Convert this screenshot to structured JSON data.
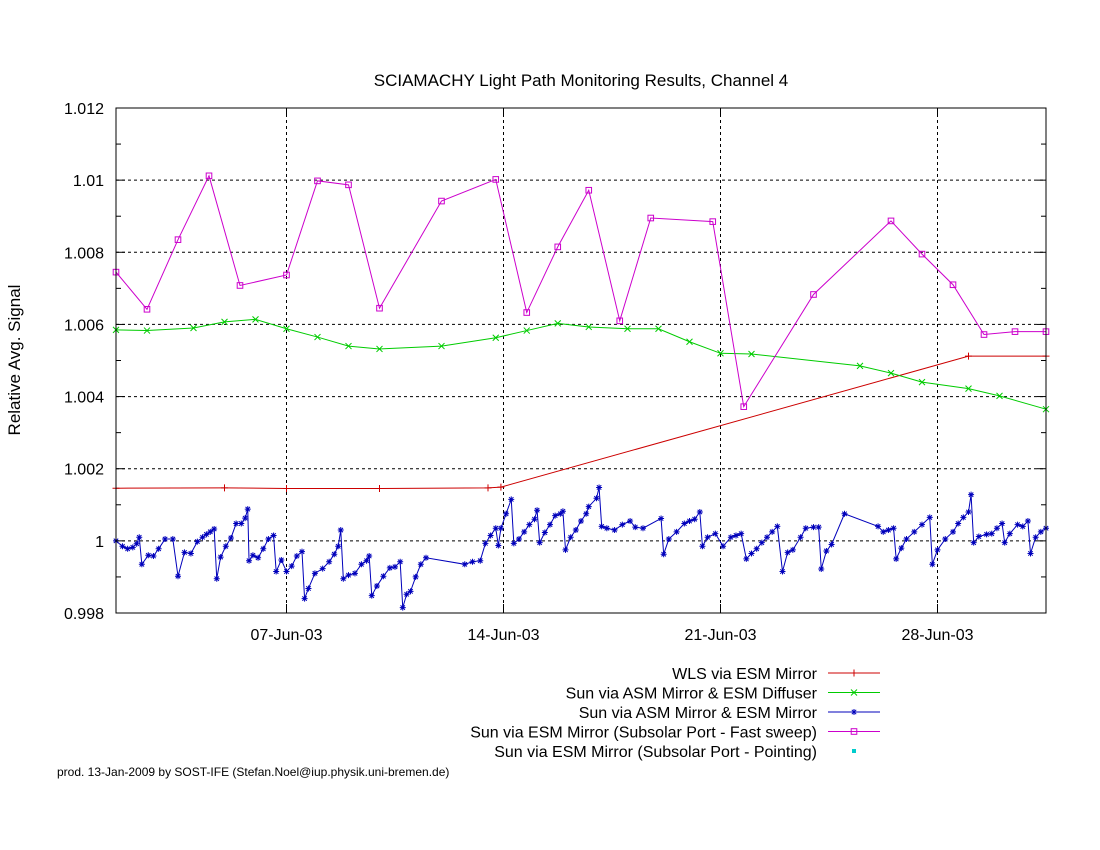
{
  "chart_data": {
    "type": "line",
    "title": "SCIAMACHY Light Path Monitoring Results, Channel 4",
    "xlabel": "",
    "ylabel": "Relative Avg. Signal",
    "x_unit": "date (2003, month-day)",
    "xlim": [
      "2003-06-01T12:00",
      "2003-07-01T12:00"
    ],
    "ylim": [
      0.998,
      1.012
    ],
    "y_ticks": [
      "0.998",
      "1",
      "1.002",
      "1.004",
      "1.006",
      "1.008",
      "1.01",
      "1.012"
    ],
    "x_ticks": [
      {
        "date": "2003-06-07",
        "label": "07-Jun-03"
      },
      {
        "date": "2003-06-14",
        "label": "14-Jun-03"
      },
      {
        "date": "2003-06-21",
        "label": "21-Jun-03"
      },
      {
        "date": "2003-06-28",
        "label": "28-Jun-03"
      }
    ],
    "grid": true,
    "legend_position": "bottom-right",
    "series": [
      {
        "name": "WLS via ESM Mirror",
        "color": "#cc0000",
        "marker": "plus",
        "points": [
          [
            "2003-06-01T12:00",
            1.00146
          ],
          [
            "2003-06-05T00:00",
            1.00147
          ],
          [
            "2003-06-07T00:00",
            1.00145
          ],
          [
            "2003-06-10T00:00",
            1.00145
          ],
          [
            "2003-06-13T12:00",
            1.00147
          ],
          [
            "2003-06-13T22:00",
            1.00149
          ],
          [
            "2003-06-29T00:00",
            1.00512
          ],
          [
            "2003-07-01T12:00",
            1.00512
          ]
        ]
      },
      {
        "name": "Sun via ASM Mirror & ESM Diffuser",
        "color": "#00cc00",
        "marker": "cross",
        "points": [
          [
            "2003-06-01T12:00",
            1.00585
          ],
          [
            "2003-06-02T12:00",
            1.00583
          ],
          [
            "2003-06-04T00:00",
            1.0059
          ],
          [
            "2003-06-05T00:00",
            1.00607
          ],
          [
            "2003-06-06T00:00",
            1.00614
          ],
          [
            "2003-06-07T00:00",
            1.00588
          ],
          [
            "2003-06-08T00:00",
            1.00565
          ],
          [
            "2003-06-09T00:00",
            1.0054
          ],
          [
            "2003-06-10T00:00",
            1.00532
          ],
          [
            "2003-06-12T00:00",
            1.0054
          ],
          [
            "2003-06-13T18:00",
            1.00563
          ],
          [
            "2003-06-14T18:00",
            1.00583
          ],
          [
            "2003-06-15T18:00",
            1.00603
          ],
          [
            "2003-06-16T18:00",
            1.00593
          ],
          [
            "2003-06-18T00:00",
            1.00588
          ],
          [
            "2003-06-19T00:00",
            1.00588
          ],
          [
            "2003-06-20T00:00",
            1.00552
          ],
          [
            "2003-06-21T00:00",
            1.0052
          ],
          [
            "2003-06-22T00:00",
            1.00518
          ],
          [
            "2003-06-25T12:00",
            1.00485
          ],
          [
            "2003-06-26T12:00",
            1.00465
          ],
          [
            "2003-06-27T12:00",
            1.0044
          ],
          [
            "2003-06-29T00:00",
            1.00422
          ],
          [
            "2003-06-30T00:00",
            1.00402
          ],
          [
            "2003-07-01T12:00",
            1.00365
          ]
        ]
      },
      {
        "name": "Sun via ASM Mirror & ESM Mirror",
        "color": "#0000bb",
        "marker": "star",
        "points": [
          [
            "2003-06-01T12:00",
            1.0
          ],
          [
            "2003-06-01T17:00",
            0.99985
          ],
          [
            "2003-06-01T21:00",
            0.99978
          ],
          [
            "2003-06-02T01:00",
            0.99982
          ],
          [
            "2003-06-02T04:00",
            0.99992
          ],
          [
            "2003-06-02T06:00",
            1.0001
          ],
          [
            "2003-06-02T08:00",
            0.99935
          ],
          [
            "2003-06-02T13:00",
            0.9996
          ],
          [
            "2003-06-02T17:00",
            0.99958
          ],
          [
            "2003-06-02T21:00",
            0.99978
          ],
          [
            "2003-06-03T02:00",
            1.00005
          ],
          [
            "2003-06-03T08:00",
            1.00005
          ],
          [
            "2003-06-03T12:00",
            0.99902
          ],
          [
            "2003-06-03T17:00",
            0.99968
          ],
          [
            "2003-06-03T22:00",
            0.99965
          ],
          [
            "2003-06-04T03:00",
            0.99998
          ],
          [
            "2003-06-04T07:00",
            1.0001
          ],
          [
            "2003-06-04T10:00",
            1.00018
          ],
          [
            "2003-06-04T13:00",
            1.00025
          ],
          [
            "2003-06-04T16:00",
            1.00033
          ],
          [
            "2003-06-04T18:00",
            0.99895
          ],
          [
            "2003-06-04T21:00",
            0.99955
          ],
          [
            "2003-06-05T01:00",
            0.99985
          ],
          [
            "2003-06-05T05:00",
            1.00008
          ],
          [
            "2003-06-05T09:00",
            1.00048
          ],
          [
            "2003-06-05T13:00",
            1.00048
          ],
          [
            "2003-06-05T16:00",
            1.00063
          ],
          [
            "2003-06-05T18:00",
            1.00088
          ],
          [
            "2003-06-05T19:00",
            0.99945
          ],
          [
            "2003-06-05T22:00",
            0.9996
          ],
          [
            "2003-06-06T02:00",
            0.99953
          ],
          [
            "2003-06-06T06:00",
            0.99978
          ],
          [
            "2003-06-06T10:00",
            1.00005
          ],
          [
            "2003-06-06T14:00",
            1.00015
          ],
          [
            "2003-06-06T16:00",
            0.99915
          ],
          [
            "2003-06-06T20:00",
            0.99947
          ],
          [
            "2003-06-07T00:00",
            0.99915
          ],
          [
            "2003-06-07T04:00",
            0.9993
          ],
          [
            "2003-06-07T08:00",
            0.99958
          ],
          [
            "2003-06-07T12:00",
            0.9997
          ],
          [
            "2003-06-07T14:00",
            0.9984
          ],
          [
            "2003-06-07T17:00",
            0.99868
          ],
          [
            "2003-06-07T22:00",
            0.9991
          ],
          [
            "2003-06-08T04:00",
            0.99923
          ],
          [
            "2003-06-08T09:00",
            0.99942
          ],
          [
            "2003-06-08T13:00",
            0.99963
          ],
          [
            "2003-06-08T16:00",
            0.99985
          ],
          [
            "2003-06-08T18:00",
            1.0003
          ],
          [
            "2003-06-08T20:00",
            0.99895
          ],
          [
            "2003-06-09T00:00",
            0.99905
          ],
          [
            "2003-06-09T05:00",
            0.9991
          ],
          [
            "2003-06-09T10:00",
            0.99935
          ],
          [
            "2003-06-09T14:00",
            0.99945
          ],
          [
            "2003-06-09T16:00",
            0.99958
          ],
          [
            "2003-06-09T18:00",
            0.99848
          ],
          [
            "2003-06-09T22:00",
            0.99875
          ],
          [
            "2003-06-10T03:00",
            0.99902
          ],
          [
            "2003-06-10T08:00",
            0.99925
          ],
          [
            "2003-06-10T12:00",
            0.99928
          ],
          [
            "2003-06-10T16:00",
            0.99942
          ],
          [
            "2003-06-10T18:00",
            0.99815
          ],
          [
            "2003-06-10T21:00",
            0.99852
          ],
          [
            "2003-06-11T00:00",
            0.9986
          ],
          [
            "2003-06-11T04:00",
            0.999
          ],
          [
            "2003-06-11T08:00",
            0.99935
          ],
          [
            "2003-06-11T12:00",
            0.99953
          ],
          [
            "2003-06-12T18:00",
            0.99935
          ],
          [
            "2003-06-13T00:00",
            0.99942
          ],
          [
            "2003-06-13T06:00",
            0.99945
          ],
          [
            "2003-06-13T10:00",
            0.99993
          ],
          [
            "2003-06-13T14:00",
            1.00015
          ],
          [
            "2003-06-13T18:00",
            1.00035
          ],
          [
            "2003-06-13T20:00",
            0.99987
          ],
          [
            "2003-06-13T22:00",
            1.00035
          ],
          [
            "2003-06-14T02:00",
            1.00075
          ],
          [
            "2003-06-14T06:00",
            1.00115
          ],
          [
            "2003-06-14T08:00",
            0.99993
          ],
          [
            "2003-06-14T12:00",
            1.00005
          ],
          [
            "2003-06-14T16:00",
            1.00025
          ],
          [
            "2003-06-14T20:00",
            1.00045
          ],
          [
            "2003-06-15T00:00",
            1.0006
          ],
          [
            "2003-06-15T02:00",
            1.00085
          ],
          [
            "2003-06-15T04:00",
            0.99995
          ],
          [
            "2003-06-15T08:00",
            1.00023
          ],
          [
            "2003-06-15T12:00",
            1.00045
          ],
          [
            "2003-06-15T16:00",
            1.0007
          ],
          [
            "2003-06-15T20:00",
            1.00075
          ],
          [
            "2003-06-15T22:00",
            1.00082
          ],
          [
            "2003-06-16T00:00",
            0.99975
          ],
          [
            "2003-06-16T04:00",
            1.0001
          ],
          [
            "2003-06-16T08:00",
            1.0003
          ],
          [
            "2003-06-16T12:00",
            1.00055
          ],
          [
            "2003-06-16T16:00",
            1.00075
          ],
          [
            "2003-06-16T18:00",
            1.00095
          ],
          [
            "2003-06-17T00:00",
            1.00118
          ],
          [
            "2003-06-17T02:00",
            1.00148
          ],
          [
            "2003-06-17T04:00",
            1.0004
          ],
          [
            "2003-06-17T08:00",
            1.00035
          ],
          [
            "2003-06-17T14:00",
            1.0003
          ],
          [
            "2003-06-17T20:00",
            1.00045
          ],
          [
            "2003-06-18T02:00",
            1.00055
          ],
          [
            "2003-06-18T06:00",
            1.00038
          ],
          [
            "2003-06-18T12:00",
            1.00035
          ],
          [
            "2003-06-19T02:00",
            1.00062
          ],
          [
            "2003-06-19T04:00",
            0.99963
          ],
          [
            "2003-06-19T08:00",
            1.00005
          ],
          [
            "2003-06-19T14:00",
            1.00025
          ],
          [
            "2003-06-19T20:00",
            1.00048
          ],
          [
            "2003-06-20T00:00",
            1.00055
          ],
          [
            "2003-06-20T04:00",
            1.0006
          ],
          [
            "2003-06-20T08:00",
            1.0008
          ],
          [
            "2003-06-20T10:00",
            0.99985
          ],
          [
            "2003-06-20T14:00",
            1.0001
          ],
          [
            "2003-06-20T20:00",
            1.0002
          ],
          [
            "2003-06-21T02:00",
            0.99985
          ],
          [
            "2003-06-21T08:00",
            1.0001
          ],
          [
            "2003-06-21T12:00",
            1.00015
          ],
          [
            "2003-06-21T16:00",
            1.0002
          ],
          [
            "2003-06-21T20:00",
            0.9995
          ],
          [
            "2003-06-22T00:00",
            0.99965
          ],
          [
            "2003-06-22T04:00",
            0.99978
          ],
          [
            "2003-06-22T08:00",
            0.99995
          ],
          [
            "2003-06-22T12:00",
            1.0001
          ],
          [
            "2003-06-22T16:00",
            1.00025
          ],
          [
            "2003-06-22T20:00",
            1.0004
          ],
          [
            "2003-06-23T00:00",
            0.99915
          ],
          [
            "2003-06-23T04:00",
            0.99968
          ],
          [
            "2003-06-23T08:00",
            0.99975
          ],
          [
            "2003-06-23T14:00",
            1.0001
          ],
          [
            "2003-06-23T18:00",
            1.00035
          ],
          [
            "2003-06-24T00:00",
            1.00038
          ],
          [
            "2003-06-24T04:00",
            1.00038
          ],
          [
            "2003-06-24T06:00",
            0.99922
          ],
          [
            "2003-06-24T10:00",
            0.99972
          ],
          [
            "2003-06-24T14:00",
            0.9999
          ],
          [
            "2003-06-25T00:00",
            1.00075
          ],
          [
            "2003-06-26T02:00",
            1.0004
          ],
          [
            "2003-06-26T06:00",
            1.00025
          ],
          [
            "2003-06-26T10:00",
            1.0003
          ],
          [
            "2003-06-26T14:00",
            1.00035
          ],
          [
            "2003-06-26T16:00",
            0.9995
          ],
          [
            "2003-06-26T20:00",
            0.9998
          ],
          [
            "2003-06-27T00:00",
            1.00005
          ],
          [
            "2003-06-27T06:00",
            1.00025
          ],
          [
            "2003-06-27T12:00",
            1.00045
          ],
          [
            "2003-06-27T18:00",
            1.00065
          ],
          [
            "2003-06-27T20:00",
            0.99935
          ],
          [
            "2003-06-28T00:00",
            0.99975
          ],
          [
            "2003-06-28T06:00",
            1.00005
          ],
          [
            "2003-06-28T12:00",
            1.00025
          ],
          [
            "2003-06-28T16:00",
            1.00048
          ],
          [
            "2003-06-28T20:00",
            1.00065
          ],
          [
            "2003-06-29T00:00",
            1.0008
          ],
          [
            "2003-06-29T02:00",
            1.00128
          ],
          [
            "2003-06-29T04:00",
            0.99995
          ],
          [
            "2003-06-29T08:00",
            1.00012
          ],
          [
            "2003-06-29T14:00",
            1.00018
          ],
          [
            "2003-06-29T18:00",
            1.0002
          ],
          [
            "2003-06-29T22:00",
            1.00035
          ],
          [
            "2003-06-30T02:00",
            1.00048
          ],
          [
            "2003-06-30T04:00",
            0.99995
          ],
          [
            "2003-06-30T08:00",
            1.0002
          ],
          [
            "2003-06-30T14:00",
            1.00045
          ],
          [
            "2003-06-30T18:00",
            1.0004
          ],
          [
            "2003-06-30T22:00",
            1.00055
          ],
          [
            "2003-07-01T00:00",
            0.99965
          ],
          [
            "2003-07-01T04:00",
            1.0001
          ],
          [
            "2003-07-01T08:00",
            1.00025
          ],
          [
            "2003-07-01T12:00",
            1.00035
          ]
        ]
      },
      {
        "name": "Sun via ESM Mirror (Subsolar Port - Fast sweep)",
        "color": "#cc00cc",
        "marker": "square",
        "points": [
          [
            "2003-06-01T12:00",
            1.00745
          ],
          [
            "2003-06-02T12:00",
            1.00642
          ],
          [
            "2003-06-03T12:00",
            1.00835
          ],
          [
            "2003-06-04T12:00",
            1.01012
          ],
          [
            "2003-06-05T12:00",
            1.00708
          ],
          [
            "2003-06-07T00:00",
            1.00737
          ],
          [
            "2003-06-08T00:00",
            1.00998
          ],
          [
            "2003-06-09T00:00",
            1.00987
          ],
          [
            "2003-06-10T00:00",
            1.00645
          ],
          [
            "2003-06-12T00:00",
            1.00942
          ],
          [
            "2003-06-13T18:00",
            1.01002
          ],
          [
            "2003-06-14T18:00",
            1.00633
          ],
          [
            "2003-06-15T18:00",
            1.00815
          ],
          [
            "2003-06-16T18:00",
            1.00972
          ],
          [
            "2003-06-17T18:00",
            1.0061
          ],
          [
            "2003-06-18T18:00",
            1.00895
          ],
          [
            "2003-06-20T18:00",
            1.00885
          ],
          [
            "2003-06-21T18:00",
            1.00372
          ],
          [
            "2003-06-24T00:00",
            1.00683
          ],
          [
            "2003-06-26T12:00",
            1.00887
          ],
          [
            "2003-06-27T12:00",
            1.00795
          ],
          [
            "2003-06-28T12:00",
            1.0071
          ],
          [
            "2003-06-29T12:00",
            1.00572
          ],
          [
            "2003-06-30T12:00",
            1.0058
          ],
          [
            "2003-07-01T12:00",
            1.0058
          ]
        ]
      },
      {
        "name": "Sun via ESM Mirror (Subsolar Port - Pointing)",
        "color": "#00cccc",
        "marker": "dot",
        "points": []
      }
    ]
  },
  "footer": "prod. 13-Jan-2009 by SOST-IFE (Stefan.Noel@iup.physik.uni-bremen.de)"
}
